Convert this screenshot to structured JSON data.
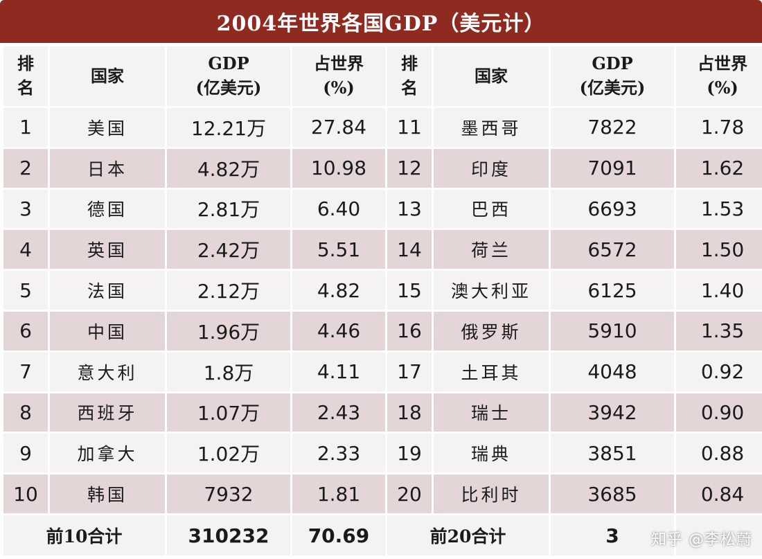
{
  "title": "2004年世界各国GDP（美元计）",
  "colors": {
    "title_bg": "#8e2a20",
    "row_light": "#f4f2f2",
    "row_dark": "#e4d6d6"
  },
  "header": {
    "rank": [
      "排",
      "名"
    ],
    "country": "国家",
    "gdp": [
      "GDP",
      "(亿美元)"
    ],
    "share": [
      "占世界",
      "(%)"
    ]
  },
  "rows": [
    {
      "l_rank": "1",
      "l_country": "美国",
      "l_gdp": "12.21万",
      "l_share": "27.84",
      "r_rank": "11",
      "r_country": "墨西哥",
      "r_gdp": "7822",
      "r_share": "1.78"
    },
    {
      "l_rank": "2",
      "l_country": "日本",
      "l_gdp": "4.82万",
      "l_share": "10.98",
      "r_rank": "12",
      "r_country": "印度",
      "r_gdp": "7091",
      "r_share": "1.62"
    },
    {
      "l_rank": "3",
      "l_country": "德国",
      "l_gdp": "2.81万",
      "l_share": "6.40",
      "r_rank": "13",
      "r_country": "巴西",
      "r_gdp": "6693",
      "r_share": "1.53"
    },
    {
      "l_rank": "4",
      "l_country": "英国",
      "l_gdp": "2.42万",
      "l_share": "5.51",
      "r_rank": "14",
      "r_country": "荷兰",
      "r_gdp": "6572",
      "r_share": "1.50"
    },
    {
      "l_rank": "5",
      "l_country": "法国",
      "l_gdp": "2.12万",
      "l_share": "4.82",
      "r_rank": "15",
      "r_country": "澳大利亚",
      "r_gdp": "6125",
      "r_share": "1.40"
    },
    {
      "l_rank": "6",
      "l_country": "中国",
      "l_gdp": "1.96万",
      "l_share": "4.46",
      "r_rank": "16",
      "r_country": "俄罗斯",
      "r_gdp": "5910",
      "r_share": "1.35"
    },
    {
      "l_rank": "7",
      "l_country": "意大利",
      "l_gdp": "1.8万",
      "l_share": "4.11",
      "r_rank": "17",
      "r_country": "土耳其",
      "r_gdp": "4048",
      "r_share": "0.92"
    },
    {
      "l_rank": "8",
      "l_country": "西班牙",
      "l_gdp": "1.07万",
      "l_share": "2.43",
      "r_rank": "18",
      "r_country": "瑞士",
      "r_gdp": "3942",
      "r_share": "0.90"
    },
    {
      "l_rank": "9",
      "l_country": "加拿大",
      "l_gdp": "1.02万",
      "l_share": "2.33",
      "r_rank": "19",
      "r_country": "瑞典",
      "r_gdp": "3851",
      "r_share": "0.88"
    },
    {
      "l_rank": "10",
      "l_country": "韩国",
      "l_gdp": "7932",
      "l_share": "1.81",
      "r_rank": "20",
      "r_country": "比利时",
      "r_gdp": "3685",
      "r_share": "0.84"
    }
  ],
  "footer": {
    "left_label": "前10合计",
    "left_gdp": "310232",
    "left_share": "70.69",
    "right_label": "前20合计",
    "right_gdp": "3",
    "right_share": ""
  },
  "watermark": "知乎 @李松蔚"
}
